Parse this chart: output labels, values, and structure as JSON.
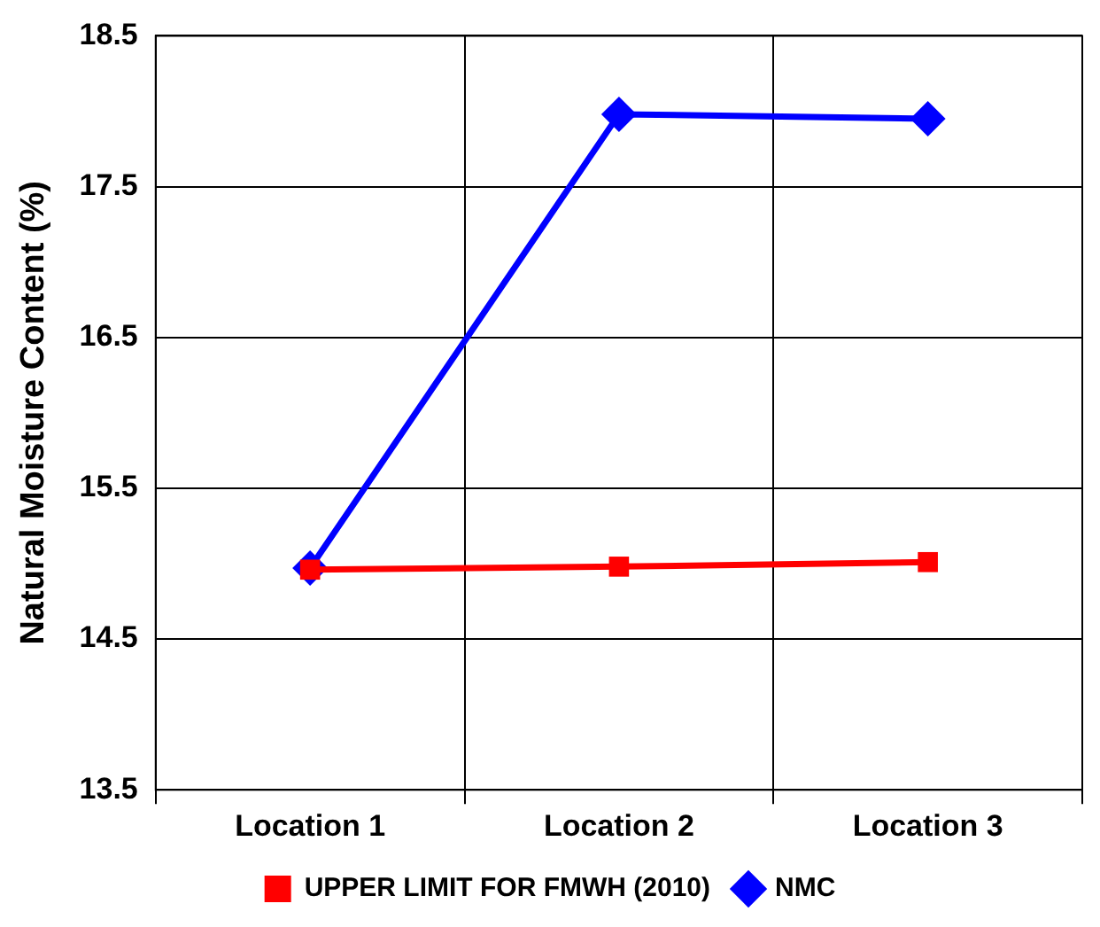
{
  "chart_data": {
    "type": "line",
    "ylabel": "Natural Moisture Content (%)",
    "categories": [
      "Location 1",
      "Location 2",
      "Location 3"
    ],
    "series": [
      {
        "name": "NMC",
        "color": "#0000ff",
        "marker": "diamond",
        "values": [
          14.97,
          17.98,
          17.95
        ]
      },
      {
        "name": "UPPER LIMIT FOR FMWH (2010)",
        "color": "#ff0000",
        "marker": "square",
        "values": [
          14.96,
          14.98,
          15.01
        ]
      }
    ],
    "ylim": [
      13.5,
      18.5
    ],
    "yticks": [
      13.5,
      14.5,
      15.5,
      16.5,
      17.5,
      18.5
    ],
    "grid": true,
    "legend": "bottom",
    "line_style": "solid"
  }
}
